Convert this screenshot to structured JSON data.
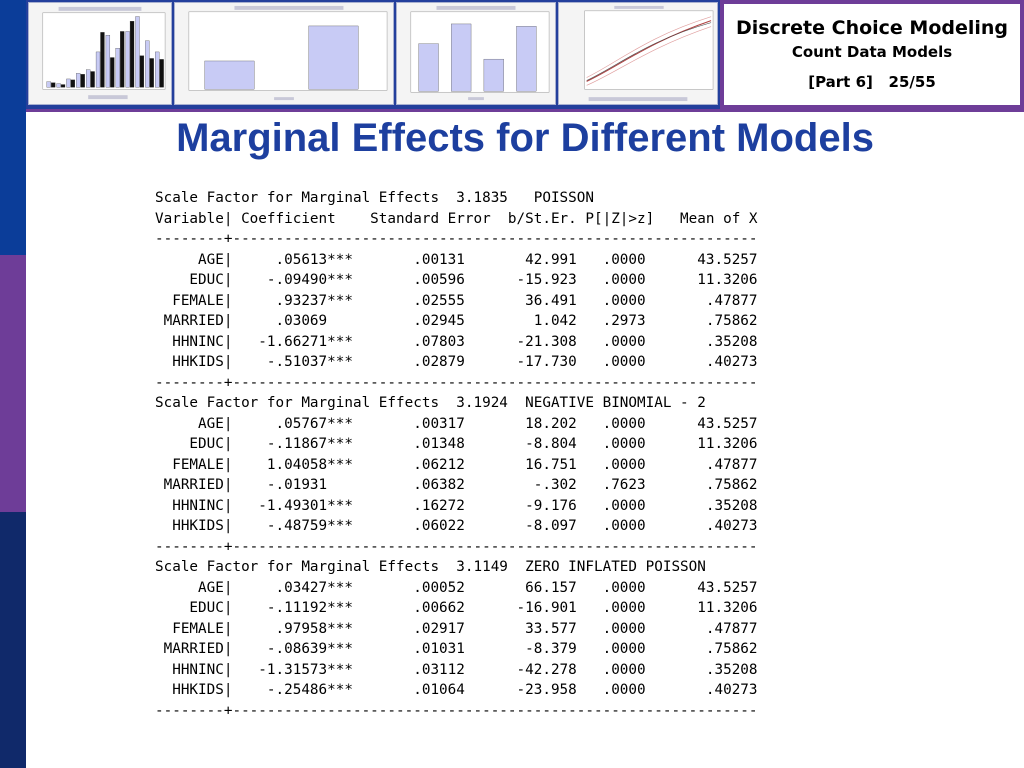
{
  "header": {
    "course_title": "Discrete Choice Modeling",
    "subtitle": "Count Data Models",
    "part_label": "[Part 6]   25/55"
  },
  "slide": {
    "title": "Marginal Effects for Different Models"
  },
  "thumbnails": {
    "histogram_values": [
      0.3,
      0.2,
      0.45,
      0.75,
      0.95,
      1.9,
      2.8,
      2.1,
      3.0,
      3.8,
      2.5,
      1.9
    ],
    "histogram_values_dark": [
      0.25,
      0.15,
      0.4,
      0.7,
      0.85,
      2.95,
      1.6,
      3.0,
      3.55,
      1.7,
      1.55,
      1.5
    ],
    "two_bar_values": [
      0.38,
      0.85
    ],
    "four_bar_values": [
      0.62,
      0.88,
      0.42,
      0.85
    ]
  },
  "output": {
    "lines": [
      "Scale Factor for Marginal Effects  3.1835   POISSON",
      "Variable| Coefficient    Standard Error  b/St.Er. P[|Z|>z]   Mean of X",
      "--------+-------------------------------------------------------------",
      "     AGE|     .05613***       .00131       42.991   .0000      43.5257",
      "    EDUC|    -.09490***       .00596      -15.923   .0000      11.3206",
      "  FEMALE|     .93237***       .02555       36.491   .0000       .47877",
      " MARRIED|     .03069          .02945        1.042   .2973       .75862",
      "  HHNINC|   -1.66271***       .07803      -21.308   .0000       .35208",
      "  HHKIDS|    -.51037***       .02879      -17.730   .0000       .40273",
      "--------+-------------------------------------------------------------",
      "Scale Factor for Marginal Effects  3.1924  NEGATIVE BINOMIAL - 2",
      "     AGE|     .05767***       .00317       18.202   .0000      43.5257",
      "    EDUC|    -.11867***       .01348       -8.804   .0000      11.3206",
      "  FEMALE|    1.04058***       .06212       16.751   .0000       .47877",
      " MARRIED|    -.01931          .06382        -.302   .7623       .75862",
      "  HHNINC|   -1.49301***       .16272       -9.176   .0000       .35208",
      "  HHKIDS|    -.48759***       .06022       -8.097   .0000       .40273",
      "--------+-------------------------------------------------------------",
      "Scale Factor for Marginal Effects  3.1149  ZERO INFLATED POISSON",
      "     AGE|     .03427***       .00052       66.157   .0000      43.5257",
      "    EDUC|    -.11192***       .00662      -16.901   .0000      11.3206",
      "  FEMALE|     .97958***       .02917       33.577   .0000       .47877",
      " MARRIED|    -.08639***       .01031       -8.379   .0000       .75862",
      "  HHNINC|   -1.31573***       .03112      -42.278   .0000       .35208",
      "  HHKIDS|    -.25486***       .01064      -23.958   .0000       .40273",
      "--------+-------------------------------------------------------------"
    ]
  }
}
